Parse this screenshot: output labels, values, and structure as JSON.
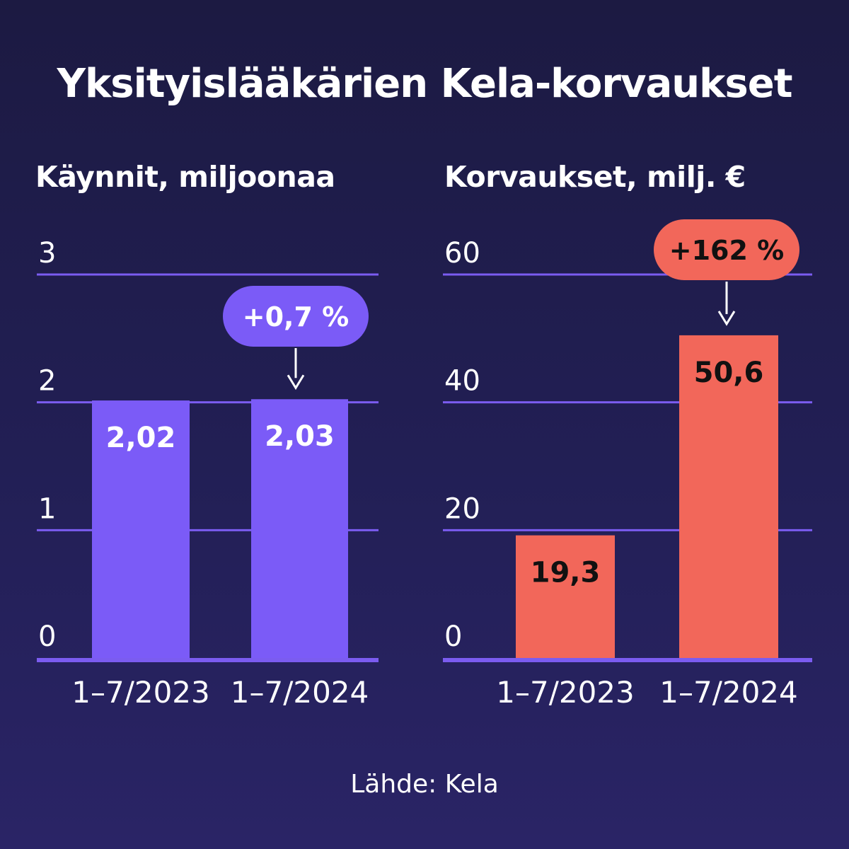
{
  "title": "Yksityislääkärien Kela-korvaukset",
  "source": "Lähde: Kela",
  "colors": {
    "grid": "#7b5cf0",
    "purple_bar": "#7b5bf7",
    "red_bar": "#f2675a",
    "axis": "#7b5cf0"
  },
  "chart_data": [
    {
      "type": "bar",
      "title": "Käynnit, miljoonaa",
      "categories": [
        "1–7/2023",
        "1–7/2024"
      ],
      "values": [
        2.02,
        2.03
      ],
      "value_labels": [
        "2,02",
        "2,03"
      ],
      "yticks": [
        "0",
        "1",
        "2",
        "3"
      ],
      "ylim": [
        0,
        3
      ],
      "grid": true,
      "annotation": {
        "text": "+0,7 %",
        "target_index": 1
      }
    },
    {
      "type": "bar",
      "title": "Korvaukset, milj. €",
      "categories": [
        "1–7/2023",
        "1–7/2024"
      ],
      "values": [
        19.3,
        50.6
      ],
      "value_labels": [
        "19,3",
        "50,6"
      ],
      "yticks": [
        "0",
        "20",
        "40",
        "60"
      ],
      "ylim": [
        0,
        60
      ],
      "grid": true,
      "annotation": {
        "text": "+162 %",
        "target_index": 1
      }
    }
  ]
}
